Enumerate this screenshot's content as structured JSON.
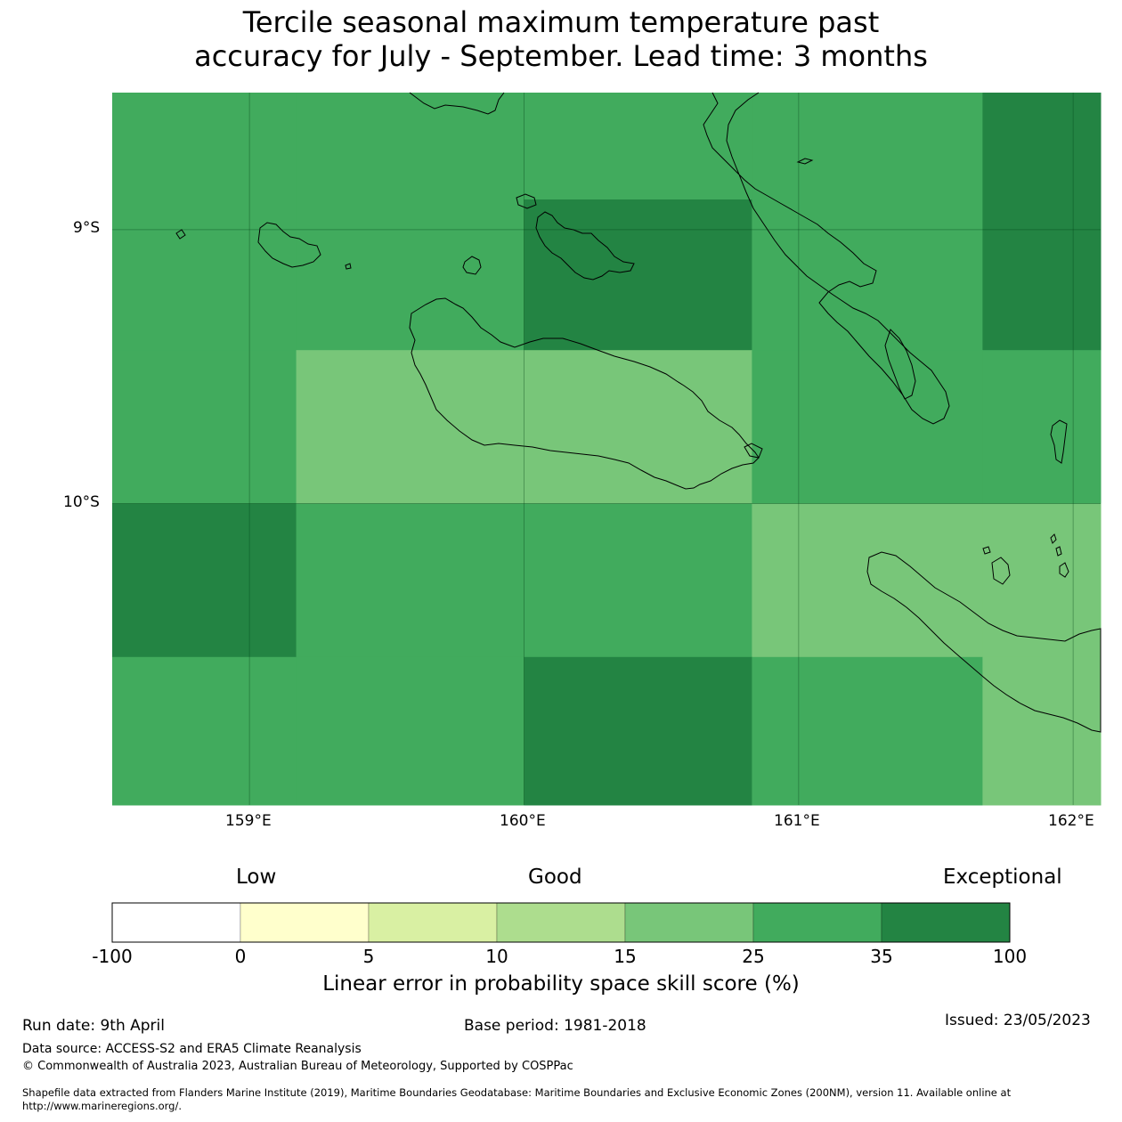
{
  "title": {
    "line1": "Tercile seasonal maximum temperature past",
    "line2": "accuracy for July - September. Lead time: 3 months"
  },
  "map": {
    "lat_labels": [
      "9°S",
      "10°S"
    ],
    "lon_labels": [
      "159°E",
      "160°E",
      "161°E",
      "162°E"
    ],
    "lat_range": [
      -11.1,
      -8.5
    ],
    "lon_range": [
      158.5,
      162.1
    ],
    "cells": [
      {
        "lon": [
          158.5,
          159.17
        ],
        "lat": [
          -8.5,
          -8.89
        ],
        "category": "25-35"
      },
      {
        "lon": [
          159.17,
          160.0
        ],
        "lat": [
          -8.5,
          -8.89
        ],
        "category": "25-35"
      },
      {
        "lon": [
          160.0,
          160.83
        ],
        "lat": [
          -8.5,
          -8.89
        ],
        "category": "25-35"
      },
      {
        "lon": [
          160.83,
          161.67
        ],
        "lat": [
          -8.5,
          -8.89
        ],
        "category": "25-35"
      },
      {
        "lon": [
          161.67,
          162.1
        ],
        "lat": [
          -8.5,
          -8.89
        ],
        "category": "35-100"
      },
      {
        "lon": [
          158.5,
          159.17
        ],
        "lat": [
          -8.89,
          -9.44
        ],
        "category": "25-35"
      },
      {
        "lon": [
          159.17,
          160.0
        ],
        "lat": [
          -8.89,
          -9.44
        ],
        "category": "25-35"
      },
      {
        "lon": [
          160.0,
          160.83
        ],
        "lat": [
          -8.89,
          -9.44
        ],
        "category": "35-100"
      },
      {
        "lon": [
          160.83,
          161.67
        ],
        "lat": [
          -8.89,
          -9.44
        ],
        "category": "25-35"
      },
      {
        "lon": [
          161.67,
          162.1
        ],
        "lat": [
          -8.89,
          -9.44
        ],
        "category": "35-100"
      },
      {
        "lon": [
          158.5,
          159.17
        ],
        "lat": [
          -9.44,
          -10.0
        ],
        "category": "25-35"
      },
      {
        "lon": [
          159.17,
          160.0
        ],
        "lat": [
          -9.44,
          -10.0
        ],
        "category": "15-25"
      },
      {
        "lon": [
          160.0,
          160.83
        ],
        "lat": [
          -9.44,
          -10.0
        ],
        "category": "15-25"
      },
      {
        "lon": [
          160.83,
          161.67
        ],
        "lat": [
          -9.44,
          -10.0
        ],
        "category": "25-35"
      },
      {
        "lon": [
          161.67,
          162.1
        ],
        "lat": [
          -9.44,
          -10.0
        ],
        "category": "25-35"
      },
      {
        "lon": [
          158.5,
          159.17
        ],
        "lat": [
          -10.0,
          -10.56
        ],
        "category": "35-100"
      },
      {
        "lon": [
          159.17,
          160.0
        ],
        "lat": [
          -10.0,
          -10.56
        ],
        "category": "25-35"
      },
      {
        "lon": [
          160.0,
          160.83
        ],
        "lat": [
          -10.0,
          -10.56
        ],
        "category": "25-35"
      },
      {
        "lon": [
          160.83,
          161.67
        ],
        "lat": [
          -10.0,
          -10.56
        ],
        "category": "15-25"
      },
      {
        "lon": [
          161.67,
          162.1
        ],
        "lat": [
          -10.0,
          -10.56
        ],
        "category": "15-25"
      },
      {
        "lon": [
          158.5,
          159.17
        ],
        "lat": [
          -10.56,
          -11.1
        ],
        "category": "25-35"
      },
      {
        "lon": [
          159.17,
          160.0
        ],
        "lat": [
          -10.56,
          -11.1
        ],
        "category": "25-35"
      },
      {
        "lon": [
          160.0,
          160.83
        ],
        "lat": [
          -10.56,
          -11.1
        ],
        "category": "35-100"
      },
      {
        "lon": [
          160.83,
          161.67
        ],
        "lat": [
          -10.56,
          -11.1
        ],
        "category": "25-35"
      },
      {
        "lon": [
          161.67,
          162.1
        ],
        "lat": [
          -10.56,
          -11.1
        ],
        "category": "15-25"
      }
    ]
  },
  "colorbar": {
    "category_labels": [
      "Low",
      "Good",
      "Exceptional"
    ],
    "ticks": [
      "-100",
      "0",
      "5",
      "10",
      "15",
      "25",
      "35",
      "100"
    ],
    "colors": [
      "#ffffff",
      "#ffffcc",
      "#d9f0a3",
      "#addd8e",
      "#78c679",
      "#41ab5d",
      "#238443"
    ],
    "label": "Linear error in probability space skill score (%)"
  },
  "footer": {
    "run_date": "Run date: 9th April",
    "base_period": "Base period: 1981-2018",
    "issued": "Issued: 23/05/2023",
    "data_source": "Data source: ACCESS-S2 and ERA5 Climate Reanalysis",
    "copyright": "© Commonwealth of Australia 2023, Australian Bureau of Meteorology, Supported by COSPPac",
    "shapefile_line1": "Shapefile data extracted from Flanders Marine Institute (2019), Maritime Boundaries Geodatabase: Maritime Boundaries and Exclusive Economic Zones (200NM), version 11. Available online at",
    "shapefile_line2": "http://www.marineregions.org/."
  }
}
